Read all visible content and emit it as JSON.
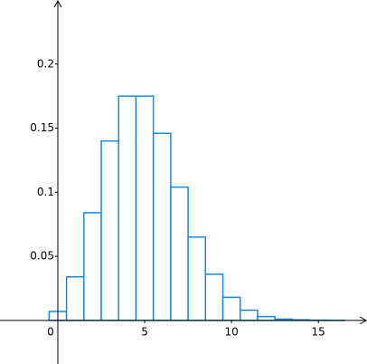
{
  "chart_data": {
    "type": "histogram",
    "color": "#1a8ad4",
    "bins": [
      -0.5,
      0.5,
      1.5,
      2.5,
      3.5,
      4.5,
      5.5,
      6.5,
      7.5,
      8.5,
      9.5,
      10.5,
      11.5,
      12.5,
      13.5,
      14.5,
      15.5,
      16.5,
      17.5
    ],
    "values": [
      0.007,
      0.034,
      0.084,
      0.14,
      0.175,
      0.175,
      0.146,
      0.104,
      0.065,
      0.036,
      0.018,
      0.008,
      0.003,
      0.001,
      0.0005,
      0.0002,
      0.0001,
      0
    ],
    "xlim": [
      -3.33,
      17.8
    ],
    "ylim": [
      -0.034,
      0.25
    ],
    "xticks": [
      0,
      5,
      10,
      15
    ],
    "yticks": [
      0.05,
      0.1,
      0.15,
      0.2
    ]
  }
}
